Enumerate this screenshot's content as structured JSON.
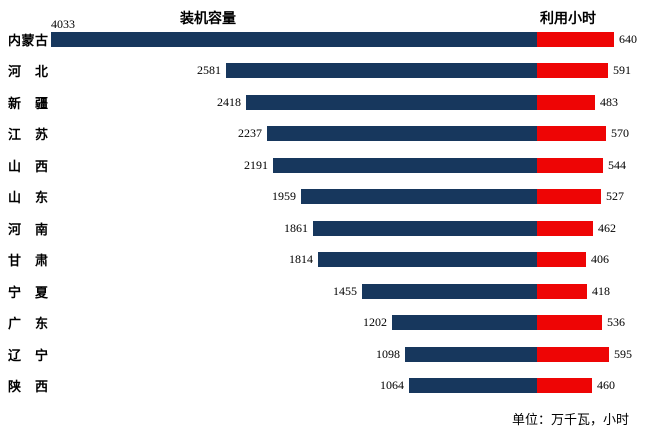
{
  "titles": {
    "left": "装机容量",
    "right": "利用小时"
  },
  "footer": "单位：万千瓦，小时",
  "colors": {
    "capacity_bar": "#17375D",
    "hours_bar": "#EE0505",
    "text": "#000000",
    "background": "#FFFFFF"
  },
  "chart_data": {
    "type": "bar",
    "subtype": "bidirectional-horizontal-tornado",
    "categories": [
      "内蒙古",
      "河北",
      "新疆",
      "江苏",
      "山西",
      "山东",
      "河南",
      "甘肃",
      "宁夏",
      "广东",
      "辽宁",
      "陕西"
    ],
    "series": [
      {
        "name": "装机容量",
        "side": "left",
        "color": "#17375D",
        "values": [
          4033,
          2581,
          2418,
          2237,
          2191,
          1959,
          1861,
          1814,
          1455,
          1202,
          1098,
          1064
        ]
      },
      {
        "name": "利用小时",
        "side": "right",
        "color": "#EE0505",
        "values": [
          640,
          591,
          483,
          570,
          544,
          527,
          462,
          406,
          418,
          536,
          595,
          460
        ]
      }
    ],
    "data_labels": true,
    "grid": false,
    "axes_visible": false,
    "unit_note": "单位：万千瓦，小时"
  }
}
